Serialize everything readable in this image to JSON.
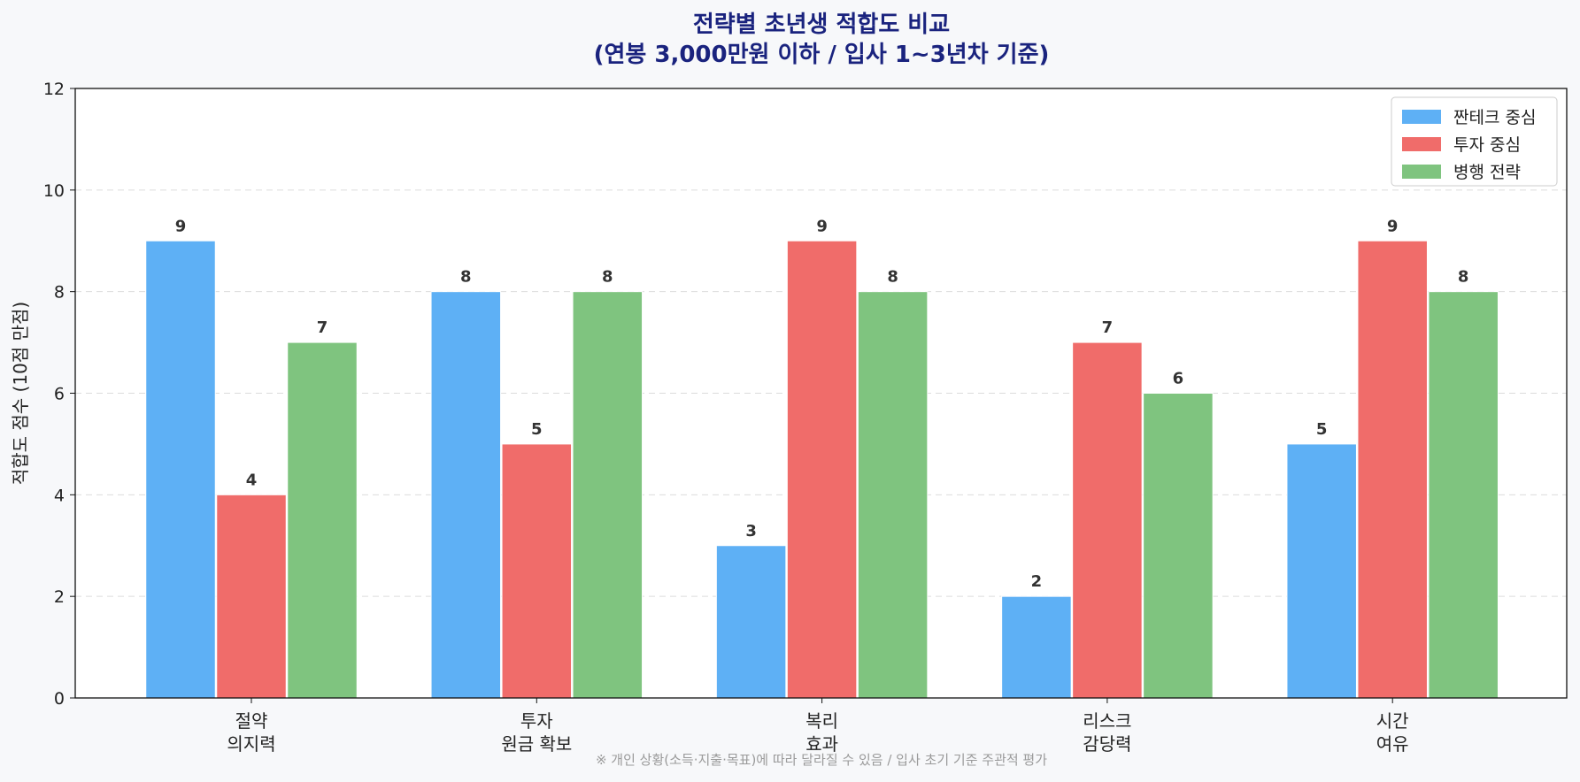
{
  "chart_data": {
    "type": "bar",
    "title_lines": [
      "전략별 초년생 적합도 비교",
      "(연봉 3,000만원 이하 / 입사 1~3년차 기준)"
    ],
    "ylabel": "적합도 점수 (10점 만점)",
    "xlabel": "",
    "ylim": [
      0,
      12
    ],
    "yticks": [
      0,
      2,
      4,
      6,
      8,
      10,
      12
    ],
    "grid": "horizontal dashed",
    "legend_position": "top-right",
    "categories": [
      [
        "절약",
        "의지력"
      ],
      [
        "투자",
        "원금 확보"
      ],
      [
        "복리",
        "효과"
      ],
      [
        "리스크",
        "감당력"
      ],
      [
        "시간",
        "여유"
      ]
    ],
    "series": [
      {
        "name": "짠테크 중심",
        "color": "#5eb0f5",
        "values": [
          9,
          8,
          3,
          2,
          5
        ]
      },
      {
        "name": "투자 중심",
        "color": "#f06c6a",
        "values": [
          4,
          5,
          9,
          7,
          9
        ]
      },
      {
        "name": "병행 전략",
        "color": "#7fc47f",
        "values": [
          7,
          8,
          8,
          6,
          8
        ]
      }
    ],
    "footnote": "※ 개인 상황(소득·지출·목표)에 따라 달라질 수 있음 / 입사 초기 기준 주관적 평가"
  }
}
